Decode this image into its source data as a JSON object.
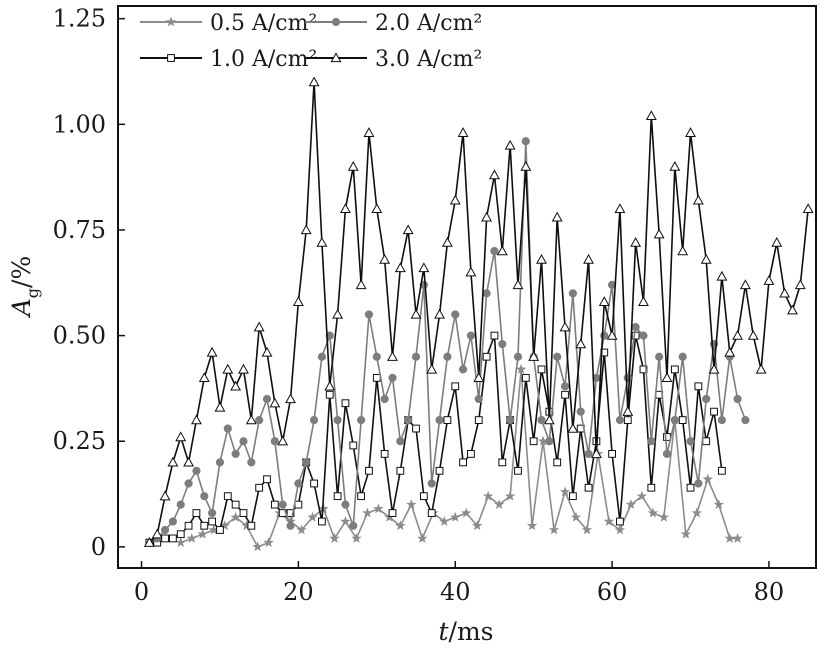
{
  "chart_data": {
    "type": "line",
    "xlabel": "t/ms",
    "ylabel": "Ag/%",
    "xlim": [
      -3,
      86
    ],
    "ylim": [
      -0.05,
      1.28
    ],
    "xticks": [
      0,
      20,
      40,
      60,
      80
    ],
    "yticks": [
      0,
      0.25,
      0.5,
      0.75,
      1.0,
      1.25
    ],
    "xtick_labels": [
      "0",
      "20",
      "40",
      "60",
      "80"
    ],
    "ytick_labels": [
      "0",
      "0.25",
      "0.50",
      "0.75",
      "1.00",
      "1.25"
    ],
    "legend_position": "top-left",
    "legend_columns": 2,
    "grid": false,
    "series": [
      {
        "name": "0.5 A/cm²",
        "color": "#8c8c8c",
        "marker": "star",
        "x": [
          5.0,
          6.4,
          7.8,
          9.2,
          10.6,
          12.0,
          13.4,
          14.8,
          16.2,
          17.6,
          19.0,
          20.4,
          21.8,
          23.2,
          24.6,
          26.0,
          27.4,
          28.8,
          30.2,
          31.6,
          33.0,
          34.4,
          35.8,
          37.2,
          38.6,
          40.0,
          41.4,
          42.8,
          44.2,
          45.6,
          47.0,
          48.4,
          49.8,
          51.2,
          52.6,
          54.0,
          55.4,
          56.8,
          58.2,
          59.6,
          61.0,
          62.4,
          63.8,
          65.2,
          66.6,
          68.0,
          69.4,
          70.8,
          72.2,
          73.6,
          75.0,
          76.0
        ],
        "y": [
          0.01,
          0.02,
          0.03,
          0.04,
          0.05,
          0.07,
          0.05,
          0.0,
          0.01,
          0.08,
          0.06,
          0.04,
          0.07,
          0.09,
          0.02,
          0.06,
          0.02,
          0.08,
          0.09,
          0.07,
          0.05,
          0.1,
          0.02,
          0.08,
          0.06,
          0.07,
          0.08,
          0.05,
          0.12,
          0.1,
          0.12,
          0.42,
          0.05,
          0.25,
          0.04,
          0.13,
          0.07,
          0.04,
          0.22,
          0.06,
          0.04,
          0.1,
          0.12,
          0.08,
          0.07,
          0.3,
          0.03,
          0.08,
          0.16,
          0.1,
          0.02,
          0.02
        ]
      },
      {
        "name": "1.0 A/cm²",
        "color": "#111111",
        "marker": "square",
        "x": [
          1.0,
          2.0,
          3.0,
          4.0,
          5.0,
          6.0,
          7.0,
          8.0,
          9.0,
          10.0,
          11.0,
          12.0,
          13.0,
          14.0,
          15.0,
          16.0,
          17.0,
          18.0,
          19.0,
          20.0,
          21.0,
          22.0,
          23.0,
          24.0,
          25.0,
          26.0,
          27.0,
          28.0,
          29.0,
          30.0,
          31.0,
          32.0,
          33.0,
          34.0,
          35.0,
          36.0,
          37.0,
          38.0,
          39.0,
          40.0,
          41.0,
          42.0,
          43.0,
          44.0,
          45.0,
          46.0,
          47.0,
          48.0,
          49.0,
          50.0,
          51.0,
          52.0,
          53.0,
          54.0,
          55.0,
          56.0,
          57.0,
          58.0,
          59.0,
          60.0,
          61.0,
          62.0,
          63.0,
          64.0,
          65.0,
          66.0,
          67.0,
          68.0,
          69.0,
          70.0,
          71.0,
          72.0,
          73.0,
          74.0
        ],
        "y": [
          0.01,
          0.01,
          0.02,
          0.02,
          0.03,
          0.05,
          0.08,
          0.05,
          0.06,
          0.04,
          0.12,
          0.1,
          0.08,
          0.05,
          0.14,
          0.16,
          0.1,
          0.08,
          0.08,
          0.1,
          0.2,
          0.15,
          0.06,
          0.36,
          0.12,
          0.34,
          0.24,
          0.12,
          0.18,
          0.4,
          0.22,
          0.08,
          0.18,
          0.3,
          0.28,
          0.12,
          0.08,
          0.18,
          0.3,
          0.38,
          0.2,
          0.22,
          0.3,
          0.45,
          0.5,
          0.2,
          0.3,
          0.18,
          0.4,
          0.25,
          0.42,
          0.32,
          0.2,
          0.36,
          0.12,
          0.28,
          0.14,
          0.25,
          0.46,
          0.22,
          0.06,
          0.3,
          0.5,
          0.42,
          0.14,
          0.36,
          0.26,
          0.42,
          0.3,
          0.14,
          0.38,
          0.25,
          0.32,
          0.18
        ]
      },
      {
        "name": "2.0 A/cm²",
        "color": "#7d7d7d",
        "marker": "circle",
        "x": [
          2.0,
          3.0,
          4.0,
          5.0,
          6.0,
          7.0,
          8.0,
          9.0,
          10.0,
          11.0,
          12.0,
          13.0,
          14.0,
          15.0,
          16.0,
          17.0,
          18.0,
          19.0,
          20.0,
          21.0,
          22.0,
          23.0,
          24.0,
          25.0,
          26.0,
          27.0,
          28.0,
          29.0,
          30.0,
          31.0,
          32.0,
          33.0,
          34.0,
          35.0,
          36.0,
          37.0,
          38.0,
          39.0,
          40.0,
          41.0,
          42.0,
          43.0,
          44.0,
          45.0,
          46.0,
          47.0,
          48.0,
          49.0,
          50.0,
          51.0,
          52.0,
          53.0,
          54.0,
          55.0,
          56.0,
          57.0,
          58.0,
          59.0,
          60.0,
          61.0,
          62.0,
          63.0,
          64.0,
          65.0,
          66.0,
          67.0,
          68.0,
          69.0,
          70.0,
          71.0,
          72.0,
          73.0,
          74.0,
          75.0,
          76.0,
          77.0
        ],
        "y": [
          0.02,
          0.04,
          0.06,
          0.1,
          0.15,
          0.18,
          0.12,
          0.08,
          0.2,
          0.28,
          0.22,
          0.25,
          0.2,
          0.3,
          0.35,
          0.25,
          0.1,
          0.05,
          0.15,
          0.2,
          0.3,
          0.45,
          0.5,
          0.3,
          0.1,
          0.05,
          0.3,
          0.55,
          0.45,
          0.35,
          0.4,
          0.25,
          0.3,
          0.45,
          0.62,
          0.15,
          0.3,
          0.45,
          0.55,
          0.42,
          0.5,
          0.35,
          0.6,
          0.7,
          0.48,
          0.3,
          0.45,
          0.96,
          0.45,
          0.3,
          0.25,
          0.45,
          0.38,
          0.6,
          0.32,
          0.22,
          0.4,
          0.5,
          0.62,
          0.3,
          0.4,
          0.52,
          0.5,
          0.25,
          0.45,
          0.22,
          0.3,
          0.45,
          0.25,
          0.15,
          0.35,
          0.48,
          0.3,
          0.45,
          0.35,
          0.3
        ]
      },
      {
        "name": "3.0 A/cm²",
        "color": "#0f0f0f",
        "marker": "triangle",
        "x": [
          1.0,
          2.0,
          3.0,
          4.0,
          5.0,
          6.0,
          7.0,
          8.0,
          9.0,
          10.0,
          11.0,
          12.0,
          13.0,
          14.0,
          15.0,
          16.0,
          17.0,
          18.0,
          19.0,
          20.0,
          21.0,
          22.0,
          23.0,
          24.0,
          25.0,
          26.0,
          27.0,
          28.0,
          29.0,
          30.0,
          31.0,
          32.0,
          33.0,
          34.0,
          35.0,
          36.0,
          37.0,
          38.0,
          39.0,
          40.0,
          41.0,
          42.0,
          43.0,
          44.0,
          45.0,
          46.0,
          47.0,
          48.0,
          49.0,
          50.0,
          51.0,
          52.0,
          53.0,
          54.0,
          55.0,
          56.0,
          57.0,
          58.0,
          59.0,
          60.0,
          61.0,
          62.0,
          63.0,
          64.0,
          65.0,
          66.0,
          67.0,
          68.0,
          69.0,
          70.0,
          71.0,
          72.0,
          73.0,
          74.0,
          75.0,
          76.0,
          77.0,
          78.0,
          79.0,
          80.0,
          81.0,
          82.0,
          83.0,
          84.0,
          85.0
        ],
        "y": [
          0.01,
          0.03,
          0.12,
          0.2,
          0.26,
          0.2,
          0.3,
          0.4,
          0.46,
          0.33,
          0.42,
          0.38,
          0.42,
          0.3,
          0.52,
          0.46,
          0.34,
          0.25,
          0.35,
          0.58,
          0.75,
          1.1,
          0.72,
          0.38,
          0.55,
          0.8,
          0.9,
          0.62,
          0.98,
          0.8,
          0.68,
          0.45,
          0.66,
          0.75,
          0.55,
          0.66,
          0.42,
          0.55,
          0.72,
          0.82,
          0.98,
          0.65,
          0.4,
          0.78,
          0.88,
          0.7,
          0.95,
          0.62,
          0.9,
          0.45,
          0.68,
          0.3,
          0.78,
          0.52,
          0.28,
          0.48,
          0.68,
          0.22,
          0.58,
          0.5,
          0.8,
          0.32,
          0.72,
          0.58,
          1.02,
          0.74,
          0.4,
          0.9,
          0.7,
          0.98,
          0.82,
          0.68,
          0.42,
          0.64,
          0.46,
          0.5,
          0.62,
          0.5,
          0.42,
          0.63,
          0.72,
          0.6,
          0.56,
          0.62,
          0.8
        ]
      }
    ]
  }
}
